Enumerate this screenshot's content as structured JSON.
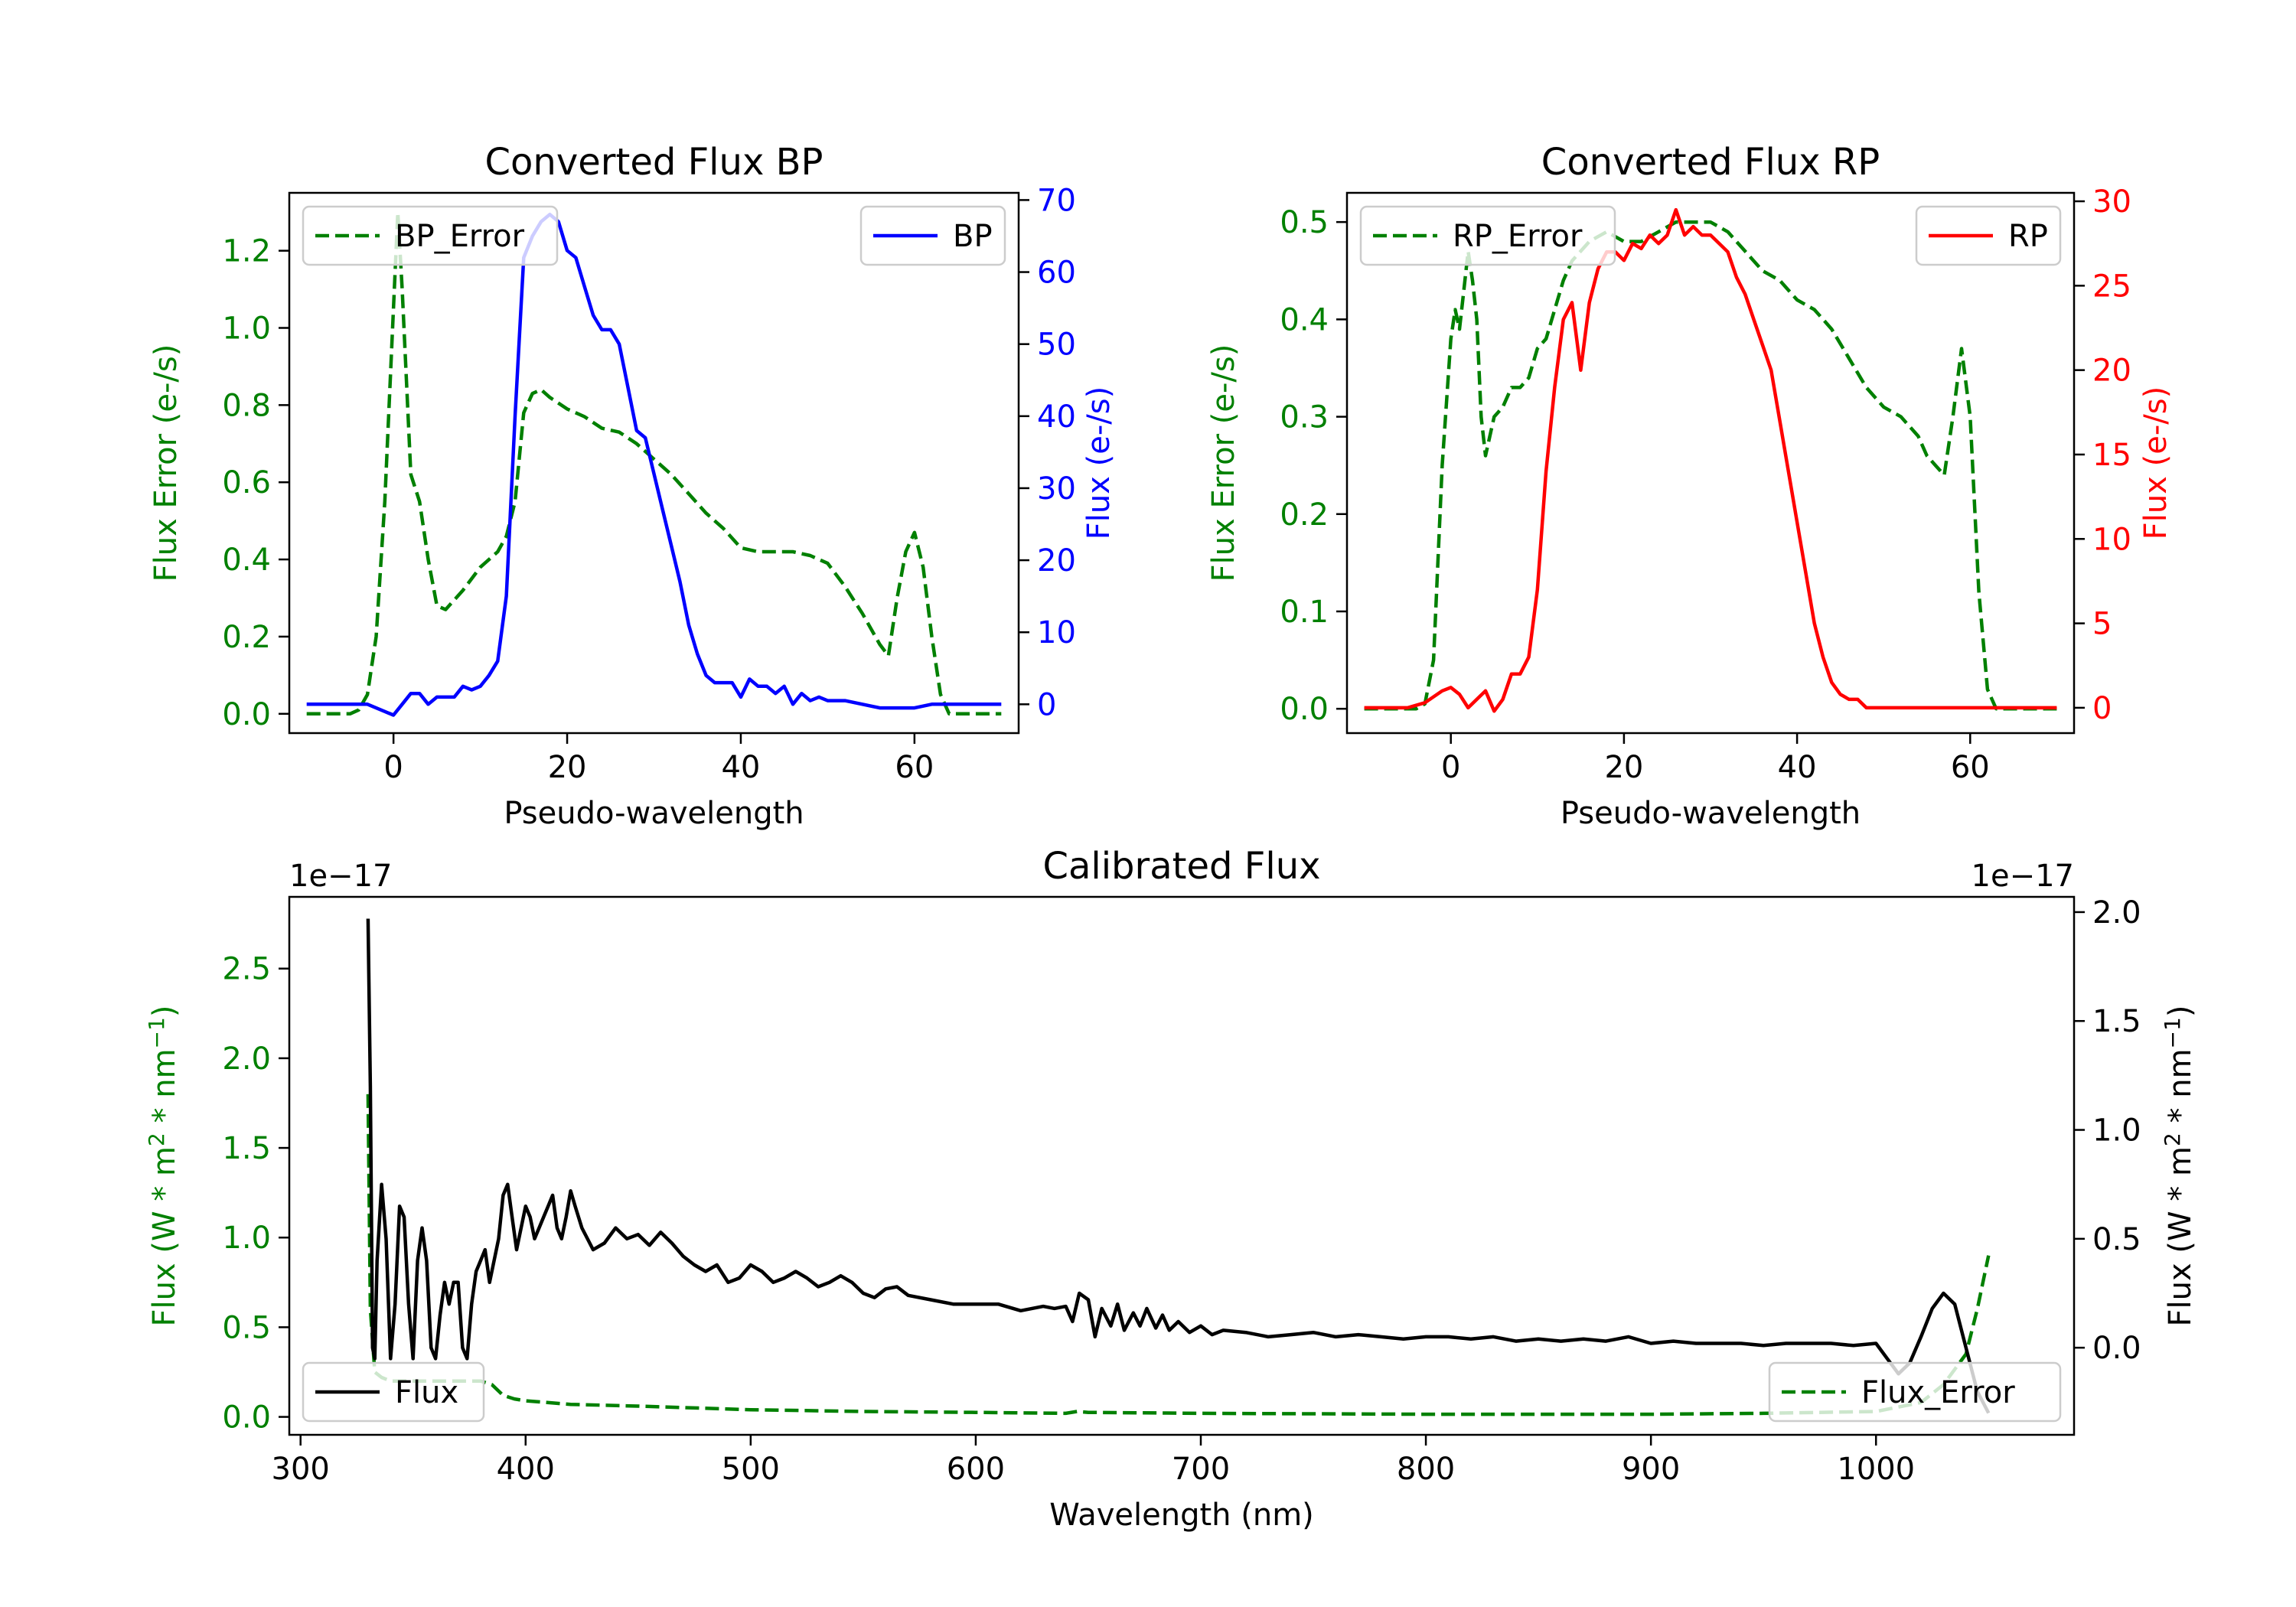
{
  "colors": {
    "bp": "#0000ff",
    "rp": "#ff0000",
    "error": "#008000",
    "flux": "#000000",
    "axis": "#000000"
  },
  "chart_data": [
    {
      "id": "bp",
      "type": "line",
      "title": "Converted Flux BP",
      "xlabel": "Pseudo-wavelength",
      "ylabel_left": "Flux Error (e-/s)",
      "ylabel_right": "Flux (e-/s)",
      "xlim": [
        -12,
        72
      ],
      "ylim_left": [
        -0.05,
        1.35
      ],
      "ylim_right": [
        -4,
        71
      ],
      "xticks": [
        0,
        20,
        40,
        60
      ],
      "yticks_left": [
        0.0,
        0.2,
        0.4,
        0.6,
        0.8,
        1.0,
        1.2
      ],
      "yticks_right": [
        0,
        10,
        20,
        30,
        40,
        50,
        60,
        70
      ],
      "legend_left": {
        "label": "BP_Error",
        "position": "upper left"
      },
      "legend_right": {
        "label": "BP",
        "position": "upper right"
      },
      "series": [
        {
          "name": "BP_Error",
          "axis": "left",
          "style": "dashed",
          "color": "#008000",
          "x": [
            -10,
            -5,
            -4,
            -3,
            -2,
            -1,
            0,
            0.5,
            1,
            2,
            3,
            4,
            5,
            6,
            8,
            10,
            12,
            13,
            14,
            15,
            16,
            17,
            18,
            20,
            22,
            24,
            26,
            28,
            30,
            32,
            34,
            36,
            38,
            40,
            42,
            44,
            46,
            48,
            50,
            52,
            54,
            56,
            57,
            58,
            59,
            60,
            61,
            62,
            63,
            64,
            66,
            70
          ],
          "y": [
            0.0,
            0.0,
            0.01,
            0.05,
            0.2,
            0.55,
            1.05,
            1.3,
            1.1,
            0.62,
            0.55,
            0.4,
            0.28,
            0.27,
            0.32,
            0.38,
            0.42,
            0.46,
            0.55,
            0.78,
            0.83,
            0.84,
            0.82,
            0.79,
            0.77,
            0.74,
            0.73,
            0.7,
            0.66,
            0.62,
            0.57,
            0.52,
            0.48,
            0.43,
            0.42,
            0.42,
            0.42,
            0.41,
            0.39,
            0.33,
            0.26,
            0.18,
            0.15,
            0.3,
            0.42,
            0.47,
            0.38,
            0.2,
            0.05,
            0.0,
            0.0,
            0.0
          ]
        },
        {
          "name": "BP",
          "axis": "right",
          "style": "solid",
          "color": "#0000ff",
          "x": [
            -10,
            -5,
            -3,
            -1,
            0,
            1,
            2,
            3,
            4,
            5,
            6,
            7,
            8,
            9,
            10,
            11,
            12,
            13,
            14,
            15,
            16,
            17,
            18,
            19,
            20,
            21,
            22,
            23,
            24,
            25,
            26,
            27,
            28,
            29,
            30,
            31,
            32,
            33,
            34,
            35,
            36,
            37,
            38,
            39,
            40,
            41,
            42,
            43,
            44,
            45,
            46,
            47,
            48,
            49,
            50,
            52,
            54,
            56,
            58,
            60,
            62,
            65,
            70
          ],
          "y": [
            0,
            0,
            0,
            -1,
            -1.5,
            0,
            1.5,
            1.5,
            0,
            1,
            1,
            1,
            2.5,
            2,
            2.5,
            4,
            6,
            15,
            40,
            62,
            65,
            67,
            68,
            67,
            63,
            62,
            58,
            54,
            52,
            52,
            50,
            44,
            38,
            37,
            32,
            27,
            22,
            17,
            11,
            7,
            4,
            3,
            3,
            3,
            1,
            3.5,
            2.5,
            2.5,
            1.5,
            2.5,
            0,
            1.5,
            0.5,
            1,
            0.5,
            0.5,
            0,
            -0.5,
            -0.5,
            -0.5,
            0,
            0,
            0
          ]
        }
      ]
    },
    {
      "id": "rp",
      "type": "line",
      "title": "Converted Flux RP",
      "xlabel": "Pseudo-wavelength",
      "ylabel_left": "Flux Error (e-/s)",
      "ylabel_right": "Flux (e-/s)",
      "xlim": [
        -12,
        72
      ],
      "ylim_left": [
        -0.025,
        0.53
      ],
      "ylim_right": [
        -1.5,
        30.5
      ],
      "xticks": [
        0,
        20,
        40,
        60
      ],
      "yticks_left": [
        0.0,
        0.1,
        0.2,
        0.3,
        0.4,
        0.5
      ],
      "yticks_right": [
        0,
        5,
        10,
        15,
        20,
        25,
        30
      ],
      "legend_left": {
        "label": "RP_Error",
        "position": "upper left"
      },
      "legend_right": {
        "label": "RP",
        "position": "upper right"
      },
      "series": [
        {
          "name": "RP_Error",
          "axis": "left",
          "style": "dashed",
          "color": "#008000",
          "x": [
            -10,
            -5,
            -4,
            -3,
            -2,
            -1,
            0,
            0.5,
            1,
            1.5,
            2,
            2.5,
            3,
            3.5,
            4,
            5,
            6,
            7,
            8,
            9,
            10,
            11,
            12,
            13,
            14,
            15,
            16,
            17,
            18,
            20,
            22,
            24,
            26,
            28,
            30,
            32,
            34,
            36,
            38,
            40,
            42,
            44,
            46,
            48,
            50,
            52,
            54,
            55,
            56,
            57,
            58,
            59,
            60,
            61,
            62,
            63,
            64,
            66,
            70
          ],
          "y": [
            0.0,
            0.0,
            0.0,
            0.005,
            0.05,
            0.25,
            0.38,
            0.41,
            0.39,
            0.43,
            0.47,
            0.44,
            0.4,
            0.3,
            0.26,
            0.3,
            0.31,
            0.33,
            0.33,
            0.34,
            0.37,
            0.38,
            0.41,
            0.44,
            0.46,
            0.47,
            0.48,
            0.485,
            0.49,
            0.48,
            0.48,
            0.49,
            0.5,
            0.5,
            0.5,
            0.49,
            0.47,
            0.45,
            0.44,
            0.42,
            0.41,
            0.39,
            0.36,
            0.33,
            0.31,
            0.3,
            0.28,
            0.26,
            0.25,
            0.24,
            0.3,
            0.37,
            0.3,
            0.12,
            0.02,
            0.0,
            0.0,
            0.0,
            0.0
          ]
        },
        {
          "name": "RP",
          "axis": "right",
          "style": "solid",
          "color": "#ff0000",
          "x": [
            -10,
            -5,
            -3,
            -1,
            0,
            1,
            2,
            3,
            4,
            5,
            6,
            7,
            8,
            9,
            10,
            11,
            12,
            13,
            14,
            15,
            16,
            17,
            18,
            19,
            20,
            21,
            22,
            23,
            24,
            25,
            26,
            27,
            28,
            29,
            30,
            31,
            32,
            33,
            34,
            35,
            36,
            37,
            38,
            39,
            40,
            41,
            42,
            43,
            44,
            45,
            46,
            47,
            48,
            49,
            50,
            52,
            54,
            56,
            58,
            60,
            62,
            65,
            70
          ],
          "y": [
            0,
            0,
            0.3,
            1,
            1.2,
            0.8,
            0,
            0.5,
            1,
            -0.2,
            0.5,
            2,
            2,
            3,
            7,
            14,
            19,
            23,
            24,
            20,
            24,
            26,
            27,
            27,
            26.5,
            27.5,
            27.2,
            28,
            27.5,
            28,
            29.5,
            28,
            28.5,
            28,
            28,
            27.5,
            27,
            25.5,
            24.5,
            23,
            21.5,
            20,
            17,
            14,
            11,
            8,
            5,
            3,
            1.5,
            0.8,
            0.5,
            0.5,
            0,
            0,
            0,
            0,
            0,
            0,
            0,
            0,
            0,
            0,
            0
          ]
        }
      ]
    },
    {
      "id": "cal",
      "type": "line",
      "title": "Calibrated Flux",
      "xlabel": "Wavelength (nm)",
      "ylabel_left": "Flux (W * m^2 * nm^-1)",
      "ylabel_right": "Flux (W * m^2 * nm^-1)",
      "offset_left": "1e−17",
      "offset_right": "1e−17",
      "xlim": [
        295,
        1088
      ],
      "ylim_left": [
        -0.1,
        2.9
      ],
      "ylim_right": [
        -0.4,
        2.07
      ],
      "xticks": [
        300,
        400,
        500,
        600,
        700,
        800,
        900,
        1000
      ],
      "yticks_left": [
        0.0,
        0.5,
        1.0,
        1.5,
        2.0,
        2.5
      ],
      "yticks_right": [
        0.0,
        0.5,
        1.0,
        1.5,
        2.0
      ],
      "legend_left": {
        "label": "Flux",
        "position": "lower left"
      },
      "legend_right": {
        "label": "Flux_Error",
        "position": "lower right"
      },
      "series": [
        {
          "name": "Flux_Error",
          "axis": "left",
          "style": "dashed",
          "color": "#008000",
          "x": [
            330,
            331,
            333,
            336,
            340,
            350,
            360,
            370,
            380,
            385,
            390,
            395,
            400,
            420,
            450,
            500,
            550,
            600,
            640,
            645,
            650,
            700,
            800,
            900,
            950,
            1000,
            1020,
            1030,
            1040,
            1045,
            1050
          ],
          "y": [
            1.8,
            0.6,
            0.25,
            0.22,
            0.2,
            0.2,
            0.2,
            0.2,
            0.2,
            0.18,
            0.12,
            0.1,
            0.09,
            0.07,
            0.06,
            0.04,
            0.03,
            0.025,
            0.02,
            0.03,
            0.025,
            0.02,
            0.015,
            0.015,
            0.02,
            0.03,
            0.08,
            0.18,
            0.35,
            0.6,
            0.9
          ]
        },
        {
          "name": "Flux",
          "axis": "right",
          "style": "solid",
          "color": "#000000",
          "x": [
            330,
            331,
            332,
            333,
            334,
            336,
            338,
            340,
            342,
            344,
            346,
            348,
            350,
            352,
            354,
            356,
            358,
            360,
            362,
            364,
            366,
            368,
            370,
            372,
            374,
            376,
            378,
            380,
            382,
            384,
            386,
            388,
            390,
            392,
            394,
            396,
            398,
            400,
            402,
            404,
            406,
            408,
            410,
            412,
            414,
            416,
            418,
            420,
            422,
            425,
            430,
            435,
            440,
            445,
            450,
            455,
            460,
            465,
            470,
            475,
            480,
            485,
            490,
            495,
            500,
            505,
            510,
            515,
            520,
            525,
            530,
            535,
            540,
            545,
            550,
            555,
            560,
            565,
            570,
            580,
            590,
            600,
            610,
            620,
            630,
            635,
            640,
            643,
            646,
            650,
            653,
            656,
            660,
            663,
            666,
            670,
            673,
            676,
            680,
            683,
            686,
            690,
            695,
            700,
            705,
            710,
            720,
            730,
            740,
            750,
            760,
            770,
            780,
            790,
            800,
            810,
            820,
            830,
            840,
            850,
            860,
            870,
            880,
            890,
            900,
            910,
            920,
            930,
            940,
            950,
            960,
            970,
            980,
            990,
            1000,
            1005,
            1010,
            1015,
            1020,
            1025,
            1030,
            1035,
            1040,
            1045,
            1050
          ],
          "y": [
            1.97,
            1.2,
            0.0,
            -0.05,
            0.4,
            0.75,
            0.5,
            -0.05,
            0.2,
            0.65,
            0.6,
            0.2,
            -0.05,
            0.4,
            0.55,
            0.4,
            0.0,
            -0.05,
            0.15,
            0.3,
            0.2,
            0.3,
            0.3,
            0.0,
            -0.05,
            0.2,
            0.35,
            0.4,
            0.45,
            0.3,
            0.4,
            0.5,
            0.7,
            0.75,
            0.6,
            0.45,
            0.55,
            0.65,
            0.6,
            0.5,
            0.55,
            0.6,
            0.65,
            0.7,
            0.55,
            0.5,
            0.6,
            0.72,
            0.65,
            0.55,
            0.45,
            0.48,
            0.55,
            0.5,
            0.52,
            0.47,
            0.53,
            0.48,
            0.42,
            0.38,
            0.35,
            0.38,
            0.3,
            0.32,
            0.38,
            0.35,
            0.3,
            0.32,
            0.35,
            0.32,
            0.28,
            0.3,
            0.33,
            0.3,
            0.25,
            0.23,
            0.27,
            0.28,
            0.24,
            0.22,
            0.2,
            0.2,
            0.2,
            0.17,
            0.19,
            0.18,
            0.19,
            0.12,
            0.25,
            0.22,
            0.05,
            0.18,
            0.1,
            0.2,
            0.08,
            0.16,
            0.1,
            0.18,
            0.09,
            0.15,
            0.08,
            0.12,
            0.07,
            0.1,
            0.06,
            0.08,
            0.07,
            0.05,
            0.06,
            0.07,
            0.05,
            0.06,
            0.05,
            0.04,
            0.05,
            0.05,
            0.04,
            0.05,
            0.03,
            0.04,
            0.03,
            0.04,
            0.03,
            0.05,
            0.02,
            0.03,
            0.02,
            0.02,
            0.02,
            0.01,
            0.02,
            0.02,
            0.02,
            0.01,
            0.02,
            -0.05,
            -0.12,
            -0.07,
            0.05,
            0.18,
            0.25,
            0.2,
            0.0,
            -0.2,
            -0.3
          ]
        }
      ]
    }
  ]
}
